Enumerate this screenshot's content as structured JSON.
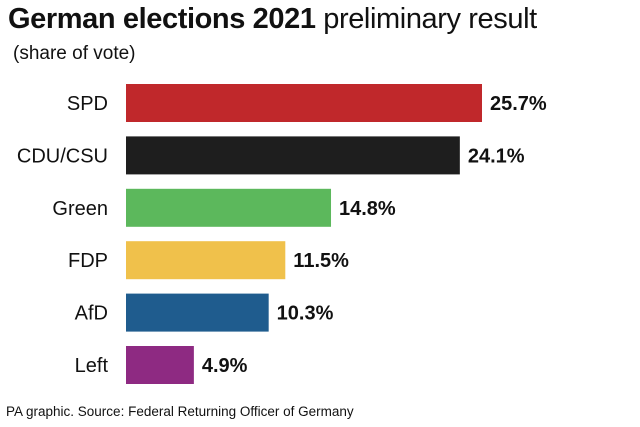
{
  "header": {
    "title_bold": "German elections 2021",
    "title_light": "preliminary result",
    "subtitle": "(share of vote)"
  },
  "footer": {
    "source": "PA graphic. Source: Federal Returning Officer of Germany"
  },
  "chart_data": {
    "type": "bar",
    "orientation": "horizontal",
    "title": "German elections 2021 preliminary result",
    "subtitle": "(share of vote)",
    "categories": [
      "SPD",
      "CDU/CSU",
      "Green",
      "FDP",
      "AfD",
      "Left"
    ],
    "values": [
      25.7,
      24.1,
      14.8,
      11.5,
      10.3,
      4.9
    ],
    "value_labels": [
      "25.7%",
      "24.1%",
      "14.8%",
      "11.5%",
      "10.3%",
      "4.9%"
    ],
    "colors": [
      "#c0282b",
      "#1e1e1e",
      "#5cb85c",
      "#f0c14b",
      "#1f5c8e",
      "#8e2a82"
    ],
    "xlim": [
      0,
      25.7
    ],
    "grid": false,
    "legend": "none"
  }
}
